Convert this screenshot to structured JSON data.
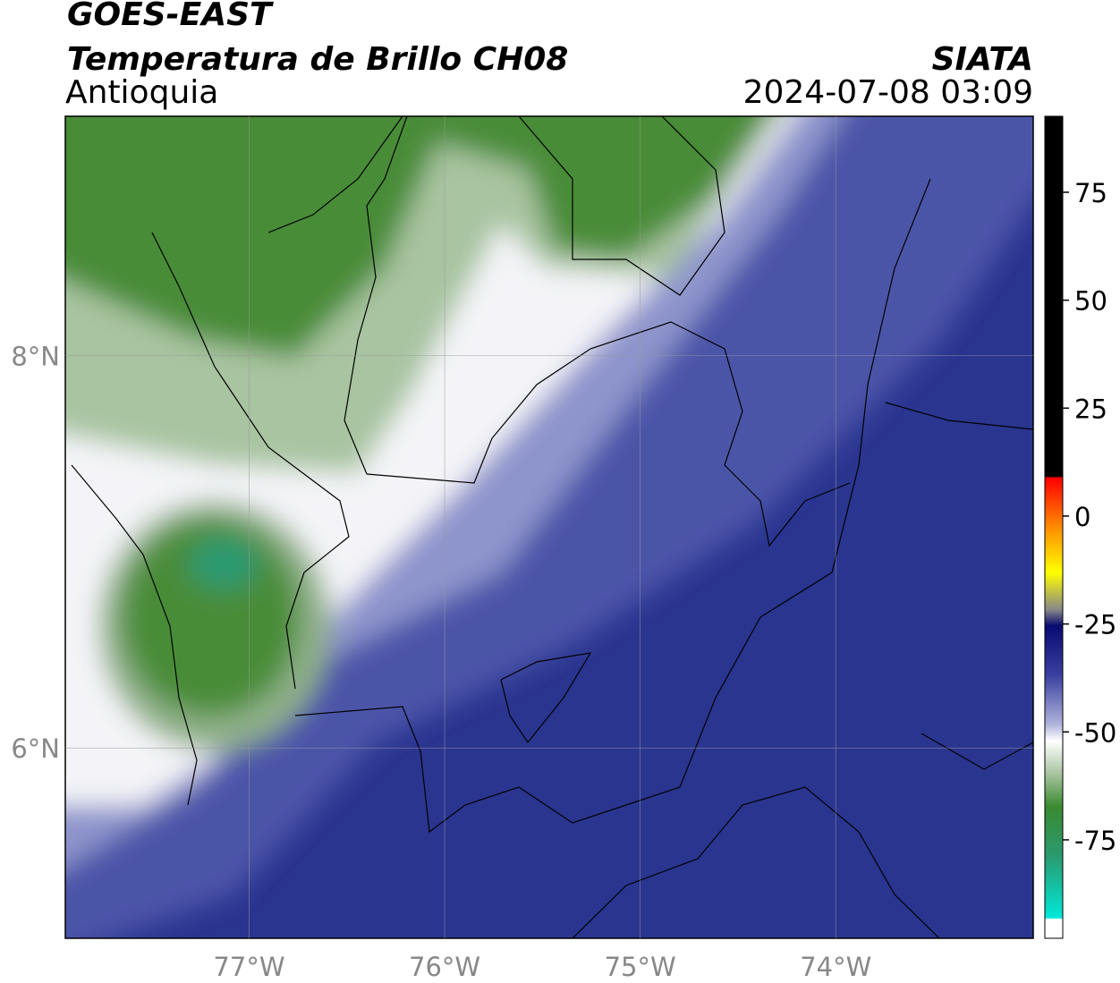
{
  "header": {
    "title": "GOES-EAST",
    "subtitle": "Temperatura de Brillo CH08",
    "region": "Antioquia",
    "source": "SIATA",
    "timestamp": "2024-07-08 03:09"
  },
  "map": {
    "xlim": [
      -77.94,
      -72.99
    ],
    "ylim": [
      5.03,
      9.22
    ],
    "xticks": [
      {
        "value": -77,
        "label": "77°W"
      },
      {
        "value": -76,
        "label": "76°W"
      },
      {
        "value": -75,
        "label": "75°W"
      },
      {
        "value": -74,
        "label": "74°W"
      }
    ],
    "yticks": [
      {
        "value": 6,
        "label": "6°N"
      },
      {
        "value": 8,
        "label": "8°N"
      }
    ],
    "grid": true
  },
  "colorbar": {
    "lim": [
      -97.8,
      92.6
    ],
    "ticks": [
      75,
      50,
      25,
      0,
      -25,
      -50,
      -75
    ]
  }
}
